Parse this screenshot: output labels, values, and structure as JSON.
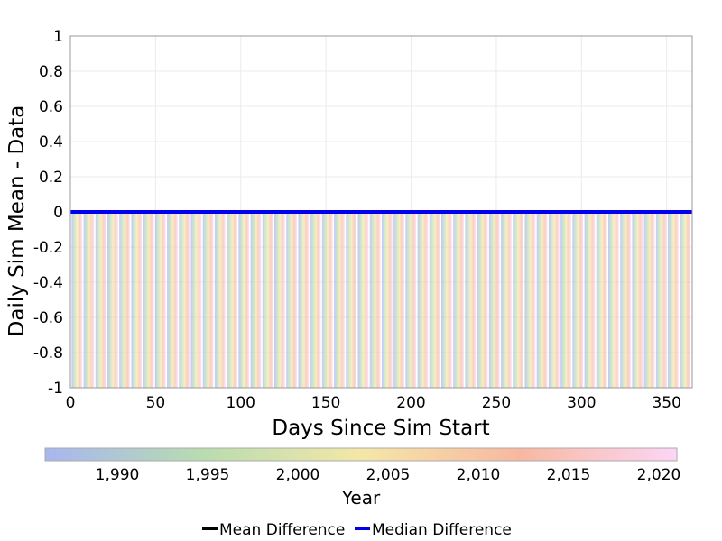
{
  "chart_data": {
    "type": "line",
    "xlabel": "Days Since Sim Start",
    "ylabel": "Daily Sim Mean - Data",
    "xlim": [
      0,
      365
    ],
    "ylim": [
      -1,
      1
    ],
    "x_ticks": [
      0,
      50,
      100,
      150,
      200,
      250,
      300,
      350
    ],
    "x_tick_labels": [
      "0",
      "50",
      "100",
      "150",
      "200",
      "250",
      "300",
      "350"
    ],
    "y_ticks": [
      -1,
      -0.8,
      -0.6,
      -0.4,
      -0.2,
      0,
      0.2,
      0.4,
      0.6,
      0.8,
      1
    ],
    "y_tick_labels": [
      "-1",
      "-0.8",
      "-0.6",
      "-0.4",
      "-0.2",
      "0",
      "0.2",
      "0.4",
      "0.6",
      "0.8",
      "1"
    ],
    "grid": true,
    "spike_period_days": 7,
    "spike_min": -1,
    "series": [
      {
        "name": "Mean Difference",
        "color": "#000000",
        "x": [
          0,
          365
        ],
        "values": [
          0,
          0
        ]
      },
      {
        "name": "Median Difference",
        "color": "#0000ee",
        "x": [
          0,
          365
        ],
        "values": [
          0,
          0
        ]
      }
    ],
    "colorbar": {
      "label": "Year",
      "range": [
        1986,
        2021
      ],
      "ticks": [
        1990,
        1995,
        2000,
        2005,
        2010,
        2015,
        2020
      ],
      "tick_labels": [
        "1,990",
        "1,995",
        "2,000",
        "2,005",
        "2,010",
        "2,015",
        "2,020"
      ],
      "colors": [
        "#a8b6f0",
        "#b8dcb0",
        "#f4e7a8",
        "#f8b8a0",
        "#fcd6f6"
      ]
    },
    "legend": {
      "placement": "bottom-center",
      "items": [
        "Mean Difference",
        "Median Difference"
      ]
    }
  }
}
